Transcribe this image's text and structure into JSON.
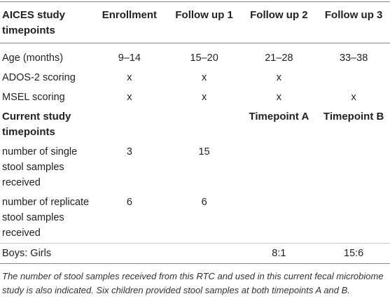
{
  "table": {
    "header": [
      "AICES study timepoints",
      "Enrollment",
      "Follow up 1",
      "Follow up 2",
      "Follow up 3"
    ],
    "rows": [
      [
        "Age (months)",
        "9–14",
        "15–20",
        "21–28",
        "33–38"
      ],
      [
        "ADOS-2 scoring",
        "x",
        "x",
        "x",
        null
      ],
      [
        "MSEL scoring",
        "x",
        "x",
        "x",
        "x"
      ],
      [
        "Current study timepoints",
        null,
        null,
        "Timepoint A",
        "Timepoint B"
      ],
      [
        "number of single stool samples received",
        "3",
        "15",
        null,
        null
      ],
      [
        "number of replicate stool samples received",
        "6",
        "6",
        null,
        null
      ],
      [
        "Boys: Girls",
        null,
        null,
        "8:1",
        "15:6"
      ]
    ],
    "caption": "The number of stool samples received from this RTC and used in this current fecal microbiome study is also indicated. Six children provided stool samples at both timepoints A and B."
  }
}
